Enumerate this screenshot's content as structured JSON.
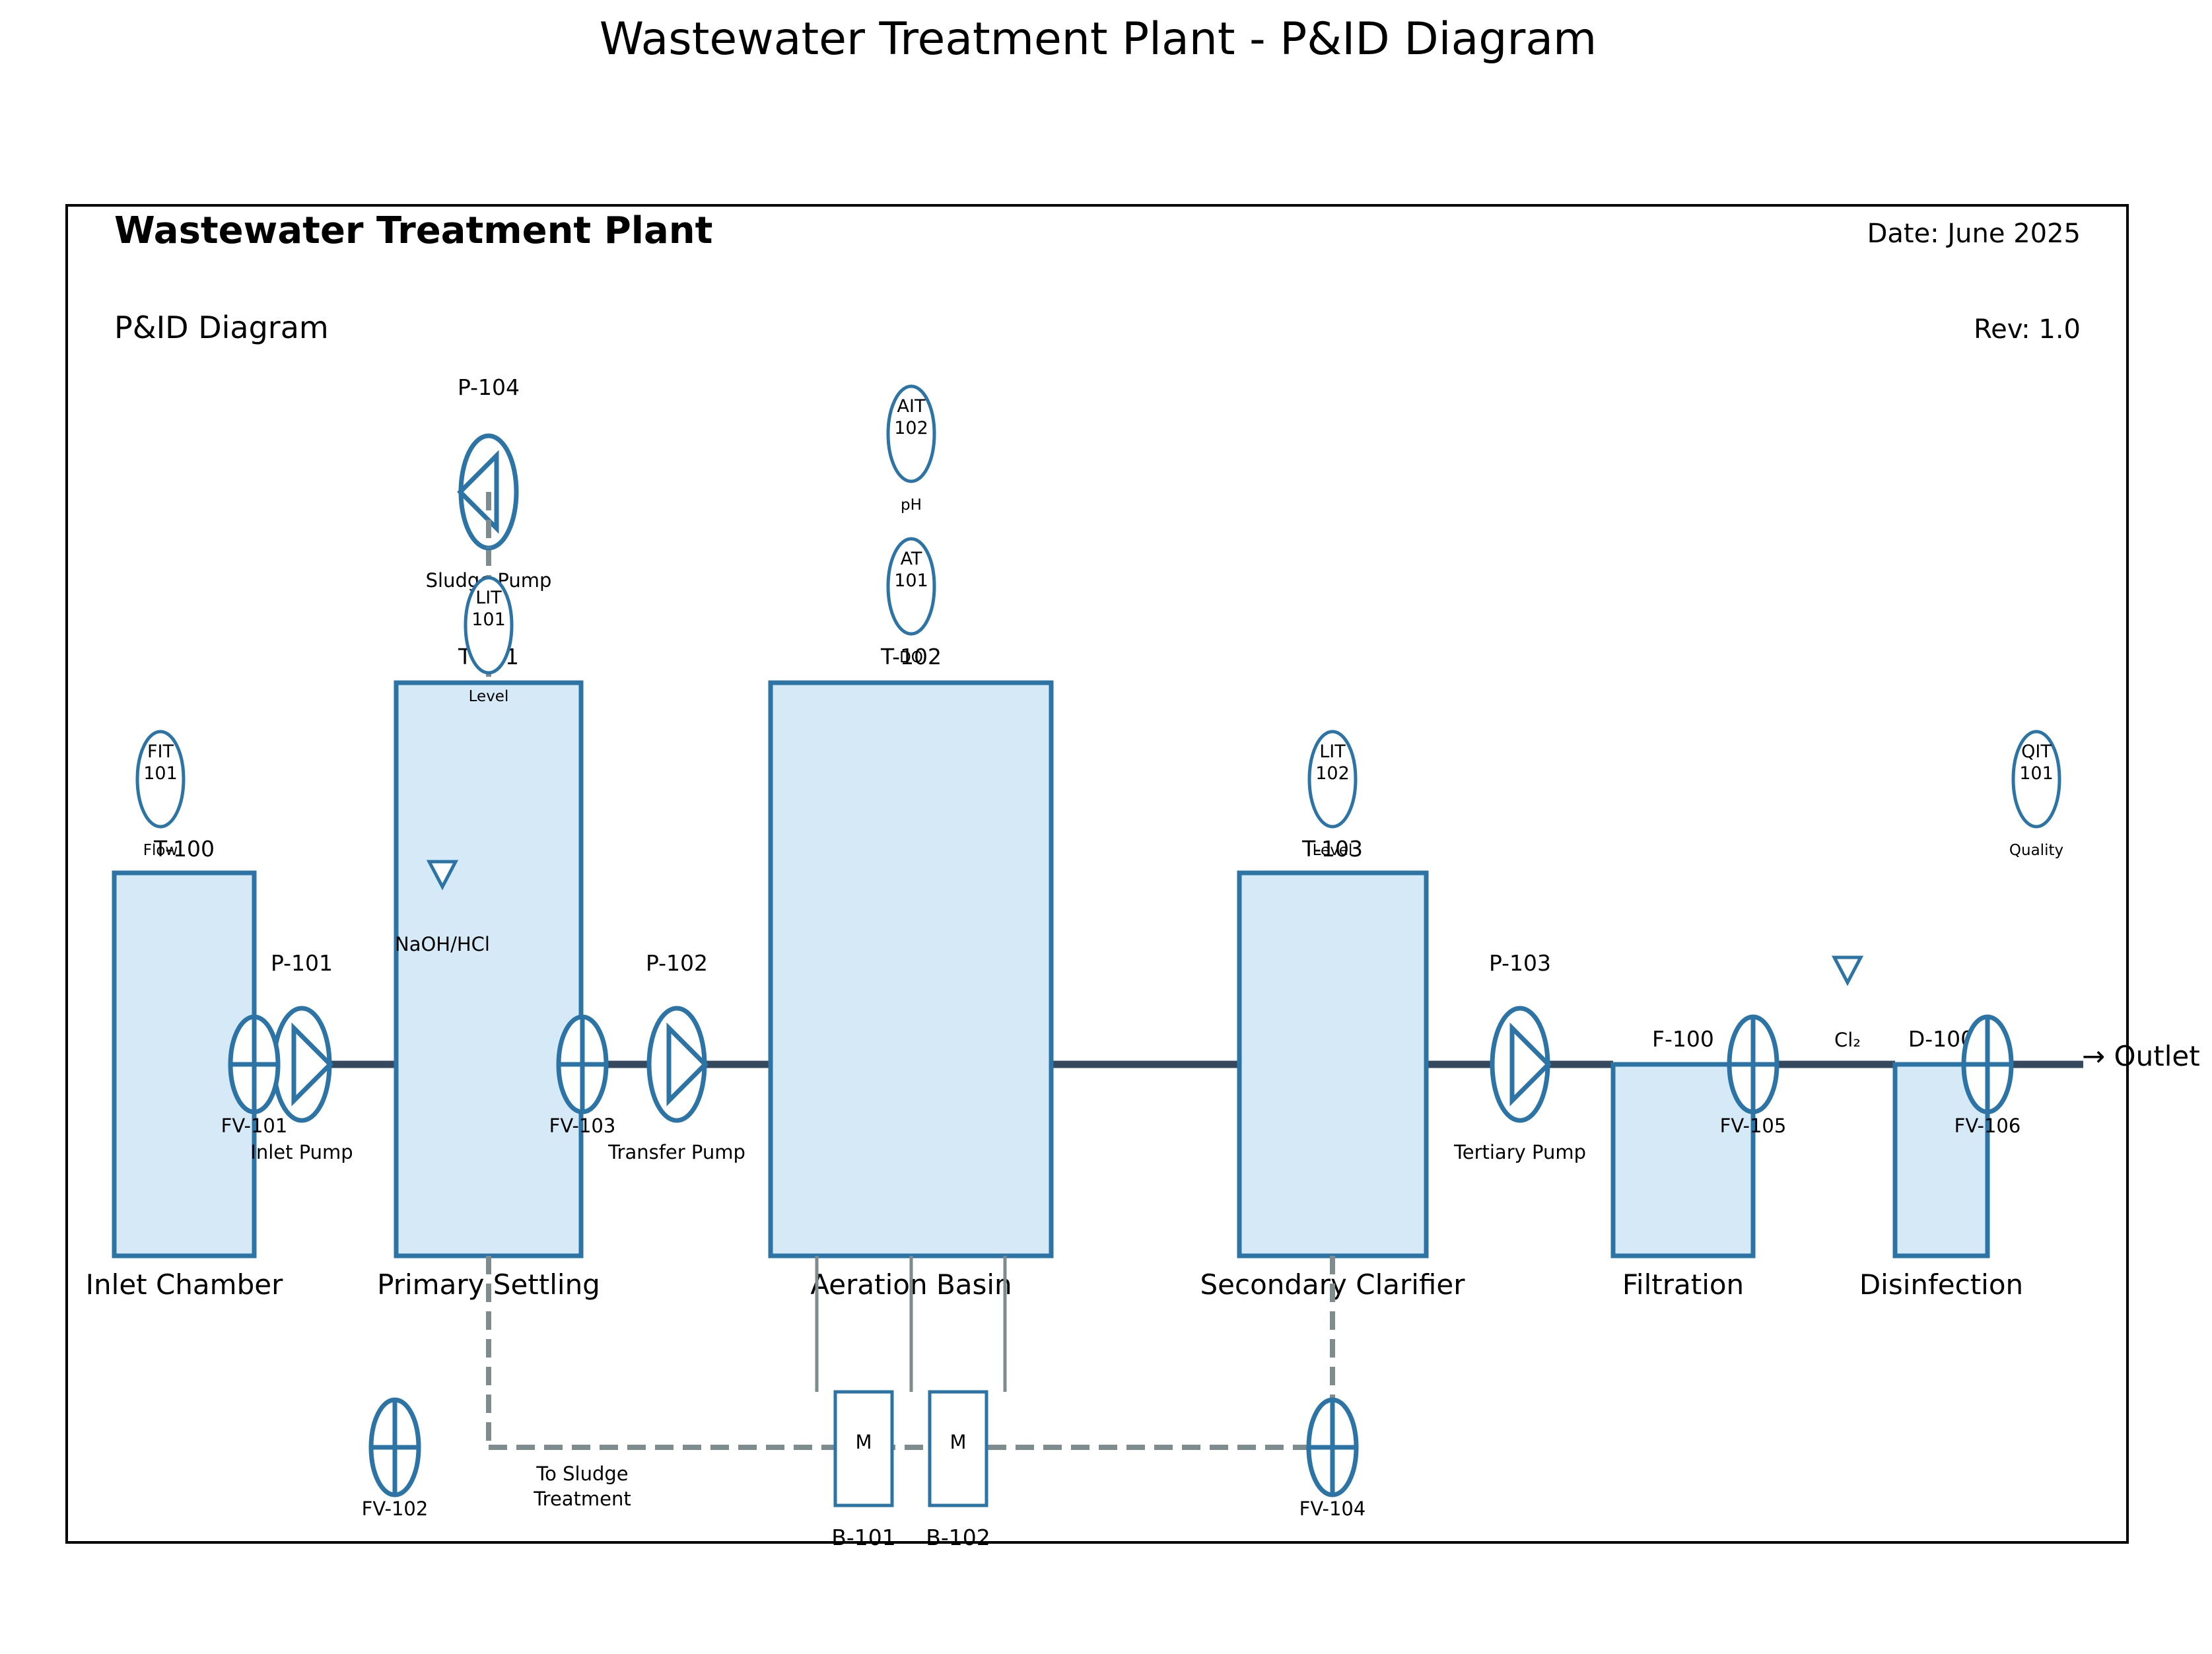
{
  "title": "Wastewater Treatment Plant - P&ID Diagram",
  "header": {
    "plant": "Wastewater Treatment Plant",
    "subtitle": "P&ID Diagram",
    "date": "Date: June 2025",
    "rev": "Rev: 1.0"
  },
  "tanks": [
    {
      "tag": "T-100",
      "name": "Inlet Chamber"
    },
    {
      "tag": "T-101",
      "name": "Primary Settling"
    },
    {
      "tag": "T-102",
      "name": "Aeration Basin"
    },
    {
      "tag": "T-103",
      "name": "Secondary Clarifier"
    },
    {
      "tag": "F-100",
      "name": "Filtration"
    },
    {
      "tag": "D-100",
      "name": "Disinfection"
    }
  ],
  "pumps": [
    {
      "tag": "P-101",
      "name": "Inlet Pump"
    },
    {
      "tag": "P-102",
      "name": "Transfer Pump"
    },
    {
      "tag": "P-103",
      "name": "Tertiary Pump"
    },
    {
      "tag": "P-104",
      "name": "Sludge Pump"
    }
  ],
  "valves": [
    "FV-101",
    "FV-102",
    "FV-103",
    "FV-104",
    "FV-105",
    "FV-106"
  ],
  "instruments": [
    {
      "code": "FIT",
      "num": "101",
      "func": "Flow"
    },
    {
      "code": "LIT",
      "num": "101",
      "func": "Level"
    },
    {
      "code": "AT",
      "num": "101",
      "func": "DO"
    },
    {
      "code": "AIT",
      "num": "102",
      "func": "pH"
    },
    {
      "code": "LIT",
      "num": "102",
      "func": "Level"
    },
    {
      "code": "QIT",
      "num": "101",
      "func": "Quality"
    }
  ],
  "blowers": [
    {
      "tag": "B-101",
      "symbol": "M"
    },
    {
      "tag": "B-102",
      "symbol": "M"
    }
  ],
  "chemicals": {
    "ph_dosing": "NaOH/HCl",
    "disinfectant": "Cl₂"
  },
  "labels": {
    "outlet": "→ Outlet",
    "sludge_line1": "To Sludge",
    "sludge_line2": "Treatment"
  },
  "colors": {
    "tank_fill": "#d6e9f6",
    "equipment_stroke": "#2c74a6",
    "process_pipe": "#34495e",
    "sludge_line": "#7f8c8d"
  }
}
